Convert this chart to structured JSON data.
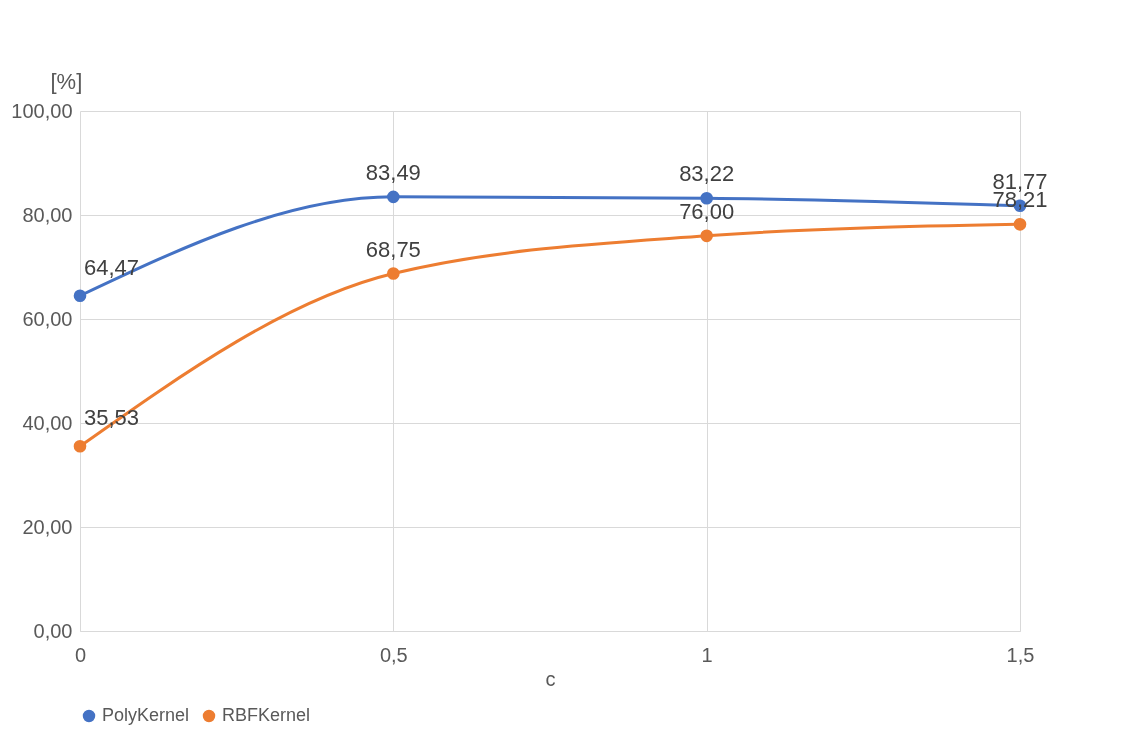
{
  "chart_data": {
    "type": "line",
    "xlabel": "c",
    "ylabel": "[%]",
    "x": [
      0,
      0.5,
      1,
      1.5
    ],
    "xlim": [
      0,
      1.5
    ],
    "xticks": [
      0,
      {
        "value": 0.5,
        "label": "0,5"
      },
      1,
      {
        "value": 1.5,
        "label": "1,5"
      }
    ],
    "ylim": [
      0,
      100
    ],
    "yticks": [
      {
        "value": 0,
        "label": "0,00"
      },
      {
        "value": 20,
        "label": "20,00"
      },
      {
        "value": 40,
        "label": "40,00"
      },
      {
        "value": 60,
        "label": "60,00"
      },
      {
        "value": 80,
        "label": "80,00"
      },
      {
        "value": 100,
        "label": "100,00"
      }
    ],
    "series": [
      {
        "name": "PolyKernel",
        "color": "#4472c4",
        "values": [
          64.47,
          83.49,
          83.22,
          81.77
        ],
        "value_labels": [
          "64,47",
          "83,49",
          "83,22",
          "81,77"
        ]
      },
      {
        "name": "RBFKernel",
        "color": "#ed7d31",
        "values": [
          35.53,
          68.75,
          76.0,
          78.21
        ],
        "value_labels": [
          "35,53",
          "68,75",
          "76,00",
          "78,21"
        ]
      }
    ],
    "grid": true,
    "legend": "bottom",
    "marker": "circle",
    "line_style": "solid"
  }
}
